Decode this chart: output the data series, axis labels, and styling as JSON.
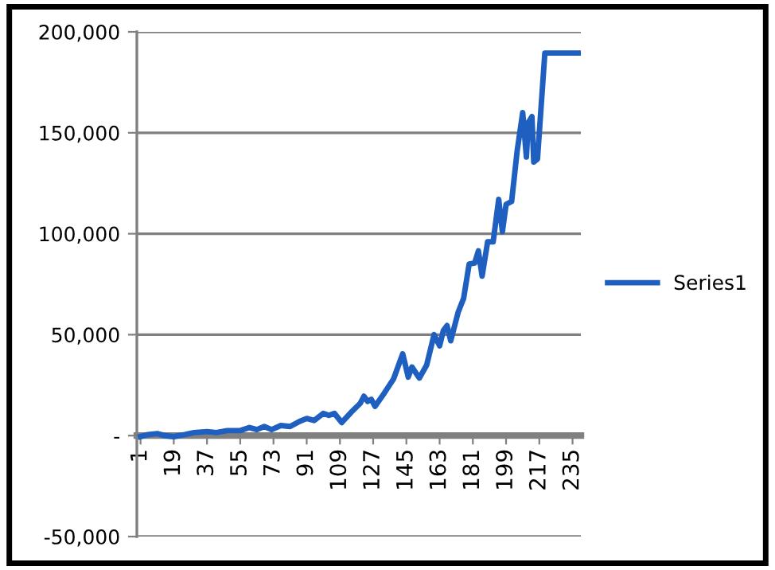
{
  "chart_data": {
    "type": "line",
    "x": [
      1,
      5,
      10,
      14,
      19,
      25,
      30,
      37,
      42,
      48,
      55,
      60,
      64,
      68,
      72,
      77,
      82,
      87,
      91,
      95,
      100,
      103,
      106,
      110,
      115,
      120,
      122,
      124,
      126,
      128,
      133,
      138,
      143,
      146,
      148,
      152,
      156,
      160,
      163,
      165,
      167,
      169,
      173,
      176,
      179,
      182,
      184,
      186,
      189,
      192,
      195,
      197,
      199,
      202,
      205,
      208,
      210,
      211,
      213,
      214,
      216,
      220,
      239
    ],
    "series": [
      {
        "name": "Series1",
        "color": "#1f5fbf",
        "values": [
          -500,
          500,
          1000,
          0,
          -500,
          500,
          1500,
          2000,
          1500,
          2500,
          2500,
          4000,
          3000,
          4500,
          3000,
          5000,
          4500,
          7000,
          8500,
          7500,
          11000,
          10000,
          11000,
          6500,
          11500,
          16000,
          19500,
          17000,
          18000,
          14500,
          21000,
          28000,
          40500,
          29000,
          34000,
          28500,
          35000,
          50000,
          44500,
          52000,
          54500,
          47000,
          61000,
          68000,
          85000,
          85500,
          91500,
          79000,
          96000,
          96000,
          117000,
          101000,
          114500,
          116000,
          141000,
          160000,
          138000,
          155000,
          158000,
          135500,
          137000,
          189500,
          189500
        ]
      }
    ],
    "xlim": [
      -1,
      239.5
    ],
    "xticks": [
      1,
      19,
      37,
      55,
      73,
      91,
      109,
      127,
      145,
      163,
      181,
      199,
      217,
      235
    ],
    "ylim": [
      -50000,
      200000
    ],
    "yticks": [
      {
        "value": -50000,
        "label": "-50,000"
      },
      {
        "value": 0,
        "label": "-"
      },
      {
        "value": 50000,
        "label": "50,000"
      },
      {
        "value": 100000,
        "label": "100,000"
      },
      {
        "value": 150000,
        "label": "150,000"
      },
      {
        "value": 200000,
        "label": "200,000"
      }
    ],
    "grid": "y",
    "legend": "right",
    "marker": "none",
    "line_style": "solid"
  }
}
